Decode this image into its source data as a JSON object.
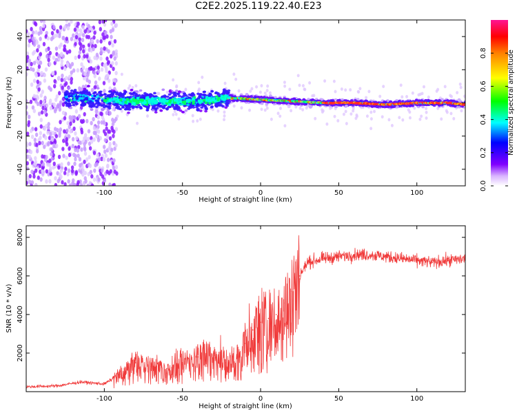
{
  "title": "C2E2.2025.119.22.40.E23",
  "chart_data": [
    {
      "type": "heatmap",
      "xlabel": "Height of straight line (km)",
      "ylabel": "Frequency (Hz)",
      "xlim": [
        -150,
        131
      ],
      "ylim": [
        -50,
        50
      ],
      "xticks": [
        -100,
        -50,
        0,
        50,
        100
      ],
      "yticks": [
        -40,
        -20,
        0,
        20,
        40
      ],
      "colorbar": {
        "label": "Normalized spectral amplitude",
        "range": [
          0,
          1
        ],
        "ticks": [
          0.0,
          0.2,
          0.4,
          0.6,
          0.8
        ],
        "tick_labels": [
          "0.0",
          "0.2",
          "0.4",
          "0.6",
          "0.8"
        ],
        "colors": [
          "#ffffff",
          "#d9b3ff",
          "#8000ff",
          "#0000ff",
          "#00ffff",
          "#00ff00",
          "#ffff00",
          "#ff8000",
          "#ff0000",
          "#ff1493"
        ]
      },
      "ridge": {
        "description_points_x": [
          -120,
          -100,
          -80,
          -60,
          -40,
          -20,
          0,
          20,
          40,
          60,
          80,
          100,
          120,
          131
        ],
        "center_frequency": [
          3,
          2,
          1,
          1,
          1,
          3,
          2,
          1,
          0,
          0,
          -1,
          0,
          0,
          -1
        ]
      }
    },
    {
      "type": "line",
      "xlabel": "Height of straight line (km)",
      "ylabel": "SNR (10 * v/v)",
      "xlim": [
        -150,
        131
      ],
      "ylim": [
        0,
        8600
      ],
      "xticks": [
        -100,
        -50,
        0,
        50,
        100
      ],
      "yticks": [
        2000,
        4000,
        6000,
        8000
      ],
      "color": "#f03a3a",
      "x": [
        -150,
        -130,
        -115,
        -100,
        -90,
        -80,
        -70,
        -60,
        -50,
        -40,
        -30,
        -22,
        -15,
        -10,
        -5,
        0,
        5,
        10,
        15,
        20,
        25,
        30,
        40,
        50,
        60,
        70,
        80,
        90,
        100,
        110,
        120,
        131
      ],
      "y": [
        250,
        300,
        500,
        400,
        900,
        1500,
        1300,
        1200,
        1500,
        1800,
        2000,
        1500,
        1800,
        2500,
        3200,
        3600,
        3800,
        4000,
        4600,
        5200,
        6000,
        6700,
        6900,
        7000,
        7100,
        7100,
        7000,
        6900,
        6800,
        6700,
        6800,
        6900
      ]
    }
  ]
}
